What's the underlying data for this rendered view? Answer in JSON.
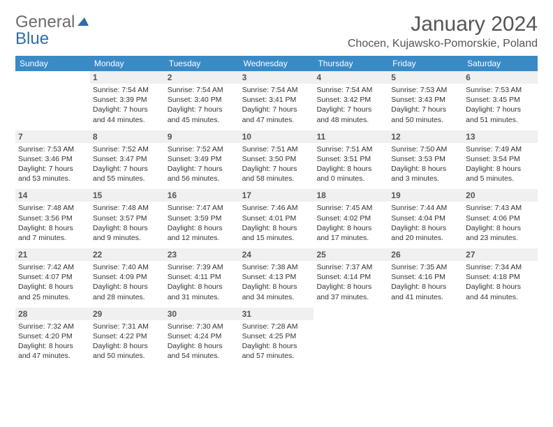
{
  "logo": {
    "general": "General",
    "blue": "Blue"
  },
  "title": {
    "month": "January 2024",
    "location": "Chocen, Kujawsko-Pomorskie, Poland"
  },
  "colors": {
    "header_bg": "#3a8ac6",
    "header_text": "#ffffff",
    "border": "#2f6fa8",
    "daynum_bg": "#f0f0f0",
    "daynum_text": "#555555",
    "body_text": "#333333",
    "logo_general": "#6b6b6b",
    "logo_blue": "#2f6fa8",
    "title_text": "#555555",
    "page_bg": "#ffffff"
  },
  "day_headers": [
    "Sunday",
    "Monday",
    "Tuesday",
    "Wednesday",
    "Thursday",
    "Friday",
    "Saturday"
  ],
  "weeks": [
    [
      {
        "num": "",
        "lines": []
      },
      {
        "num": "1",
        "lines": [
          "Sunrise: 7:54 AM",
          "Sunset: 3:39 PM",
          "Daylight: 7 hours",
          "and 44 minutes."
        ]
      },
      {
        "num": "2",
        "lines": [
          "Sunrise: 7:54 AM",
          "Sunset: 3:40 PM",
          "Daylight: 7 hours",
          "and 45 minutes."
        ]
      },
      {
        "num": "3",
        "lines": [
          "Sunrise: 7:54 AM",
          "Sunset: 3:41 PM",
          "Daylight: 7 hours",
          "and 47 minutes."
        ]
      },
      {
        "num": "4",
        "lines": [
          "Sunrise: 7:54 AM",
          "Sunset: 3:42 PM",
          "Daylight: 7 hours",
          "and 48 minutes."
        ]
      },
      {
        "num": "5",
        "lines": [
          "Sunrise: 7:53 AM",
          "Sunset: 3:43 PM",
          "Daylight: 7 hours",
          "and 50 minutes."
        ]
      },
      {
        "num": "6",
        "lines": [
          "Sunrise: 7:53 AM",
          "Sunset: 3:45 PM",
          "Daylight: 7 hours",
          "and 51 minutes."
        ]
      }
    ],
    [
      {
        "num": "7",
        "lines": [
          "Sunrise: 7:53 AM",
          "Sunset: 3:46 PM",
          "Daylight: 7 hours",
          "and 53 minutes."
        ]
      },
      {
        "num": "8",
        "lines": [
          "Sunrise: 7:52 AM",
          "Sunset: 3:47 PM",
          "Daylight: 7 hours",
          "and 55 minutes."
        ]
      },
      {
        "num": "9",
        "lines": [
          "Sunrise: 7:52 AM",
          "Sunset: 3:49 PM",
          "Daylight: 7 hours",
          "and 56 minutes."
        ]
      },
      {
        "num": "10",
        "lines": [
          "Sunrise: 7:51 AM",
          "Sunset: 3:50 PM",
          "Daylight: 7 hours",
          "and 58 minutes."
        ]
      },
      {
        "num": "11",
        "lines": [
          "Sunrise: 7:51 AM",
          "Sunset: 3:51 PM",
          "Daylight: 8 hours",
          "and 0 minutes."
        ]
      },
      {
        "num": "12",
        "lines": [
          "Sunrise: 7:50 AM",
          "Sunset: 3:53 PM",
          "Daylight: 8 hours",
          "and 3 minutes."
        ]
      },
      {
        "num": "13",
        "lines": [
          "Sunrise: 7:49 AM",
          "Sunset: 3:54 PM",
          "Daylight: 8 hours",
          "and 5 minutes."
        ]
      }
    ],
    [
      {
        "num": "14",
        "lines": [
          "Sunrise: 7:48 AM",
          "Sunset: 3:56 PM",
          "Daylight: 8 hours",
          "and 7 minutes."
        ]
      },
      {
        "num": "15",
        "lines": [
          "Sunrise: 7:48 AM",
          "Sunset: 3:57 PM",
          "Daylight: 8 hours",
          "and 9 minutes."
        ]
      },
      {
        "num": "16",
        "lines": [
          "Sunrise: 7:47 AM",
          "Sunset: 3:59 PM",
          "Daylight: 8 hours",
          "and 12 minutes."
        ]
      },
      {
        "num": "17",
        "lines": [
          "Sunrise: 7:46 AM",
          "Sunset: 4:01 PM",
          "Daylight: 8 hours",
          "and 15 minutes."
        ]
      },
      {
        "num": "18",
        "lines": [
          "Sunrise: 7:45 AM",
          "Sunset: 4:02 PM",
          "Daylight: 8 hours",
          "and 17 minutes."
        ]
      },
      {
        "num": "19",
        "lines": [
          "Sunrise: 7:44 AM",
          "Sunset: 4:04 PM",
          "Daylight: 8 hours",
          "and 20 minutes."
        ]
      },
      {
        "num": "20",
        "lines": [
          "Sunrise: 7:43 AM",
          "Sunset: 4:06 PM",
          "Daylight: 8 hours",
          "and 23 minutes."
        ]
      }
    ],
    [
      {
        "num": "21",
        "lines": [
          "Sunrise: 7:42 AM",
          "Sunset: 4:07 PM",
          "Daylight: 8 hours",
          "and 25 minutes."
        ]
      },
      {
        "num": "22",
        "lines": [
          "Sunrise: 7:40 AM",
          "Sunset: 4:09 PM",
          "Daylight: 8 hours",
          "and 28 minutes."
        ]
      },
      {
        "num": "23",
        "lines": [
          "Sunrise: 7:39 AM",
          "Sunset: 4:11 PM",
          "Daylight: 8 hours",
          "and 31 minutes."
        ]
      },
      {
        "num": "24",
        "lines": [
          "Sunrise: 7:38 AM",
          "Sunset: 4:13 PM",
          "Daylight: 8 hours",
          "and 34 minutes."
        ]
      },
      {
        "num": "25",
        "lines": [
          "Sunrise: 7:37 AM",
          "Sunset: 4:14 PM",
          "Daylight: 8 hours",
          "and 37 minutes."
        ]
      },
      {
        "num": "26",
        "lines": [
          "Sunrise: 7:35 AM",
          "Sunset: 4:16 PM",
          "Daylight: 8 hours",
          "and 41 minutes."
        ]
      },
      {
        "num": "27",
        "lines": [
          "Sunrise: 7:34 AM",
          "Sunset: 4:18 PM",
          "Daylight: 8 hours",
          "and 44 minutes."
        ]
      }
    ],
    [
      {
        "num": "28",
        "lines": [
          "Sunrise: 7:32 AM",
          "Sunset: 4:20 PM",
          "Daylight: 8 hours",
          "and 47 minutes."
        ]
      },
      {
        "num": "29",
        "lines": [
          "Sunrise: 7:31 AM",
          "Sunset: 4:22 PM",
          "Daylight: 8 hours",
          "and 50 minutes."
        ]
      },
      {
        "num": "30",
        "lines": [
          "Sunrise: 7:30 AM",
          "Sunset: 4:24 PM",
          "Daylight: 8 hours",
          "and 54 minutes."
        ]
      },
      {
        "num": "31",
        "lines": [
          "Sunrise: 7:28 AM",
          "Sunset: 4:25 PM",
          "Daylight: 8 hours",
          "and 57 minutes."
        ]
      },
      {
        "num": "",
        "lines": []
      },
      {
        "num": "",
        "lines": []
      },
      {
        "num": "",
        "lines": []
      }
    ]
  ]
}
